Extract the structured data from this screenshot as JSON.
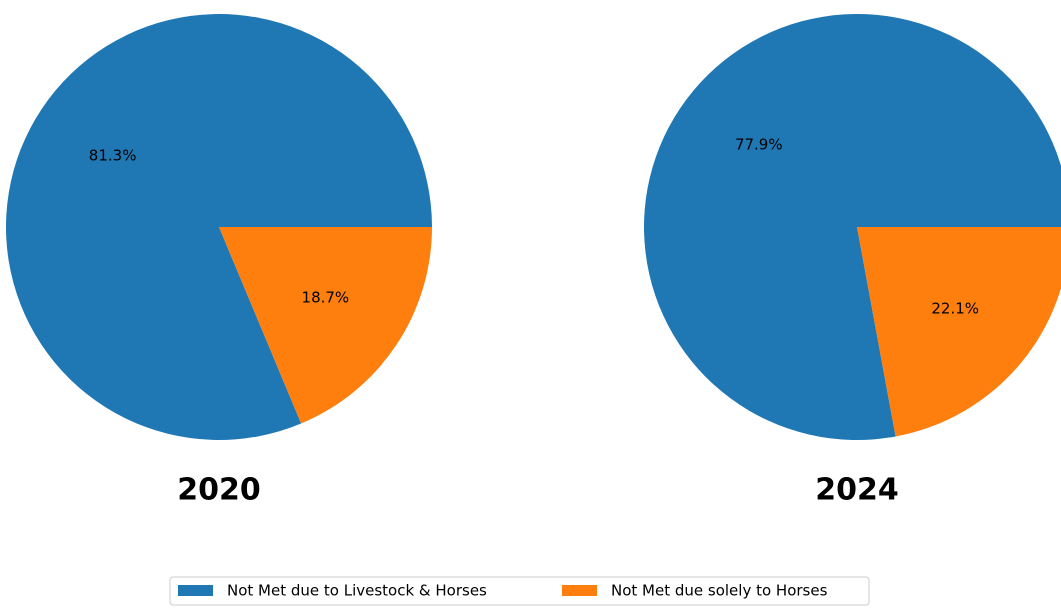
{
  "chart_data": [
    {
      "type": "pie",
      "title": "2020",
      "categories": [
        "Not Met due to Livestock & Horses",
        "Not Met due solely to Horses"
      ],
      "values": [
        81.3,
        18.7
      ],
      "value_labels": [
        "81.3%",
        "18.7%"
      ],
      "colors": [
        "#1f77b4",
        "#ff7f0e"
      ]
    },
    {
      "type": "pie",
      "title": "2024",
      "categories": [
        "Not Met due to Livestock & Horses",
        "Not Met due solely to Horses"
      ],
      "values": [
        77.9,
        22.1
      ],
      "value_labels": [
        "77.9%",
        "22.1%"
      ],
      "colors": [
        "#1f77b4",
        "#ff7f0e"
      ]
    }
  ]
}
